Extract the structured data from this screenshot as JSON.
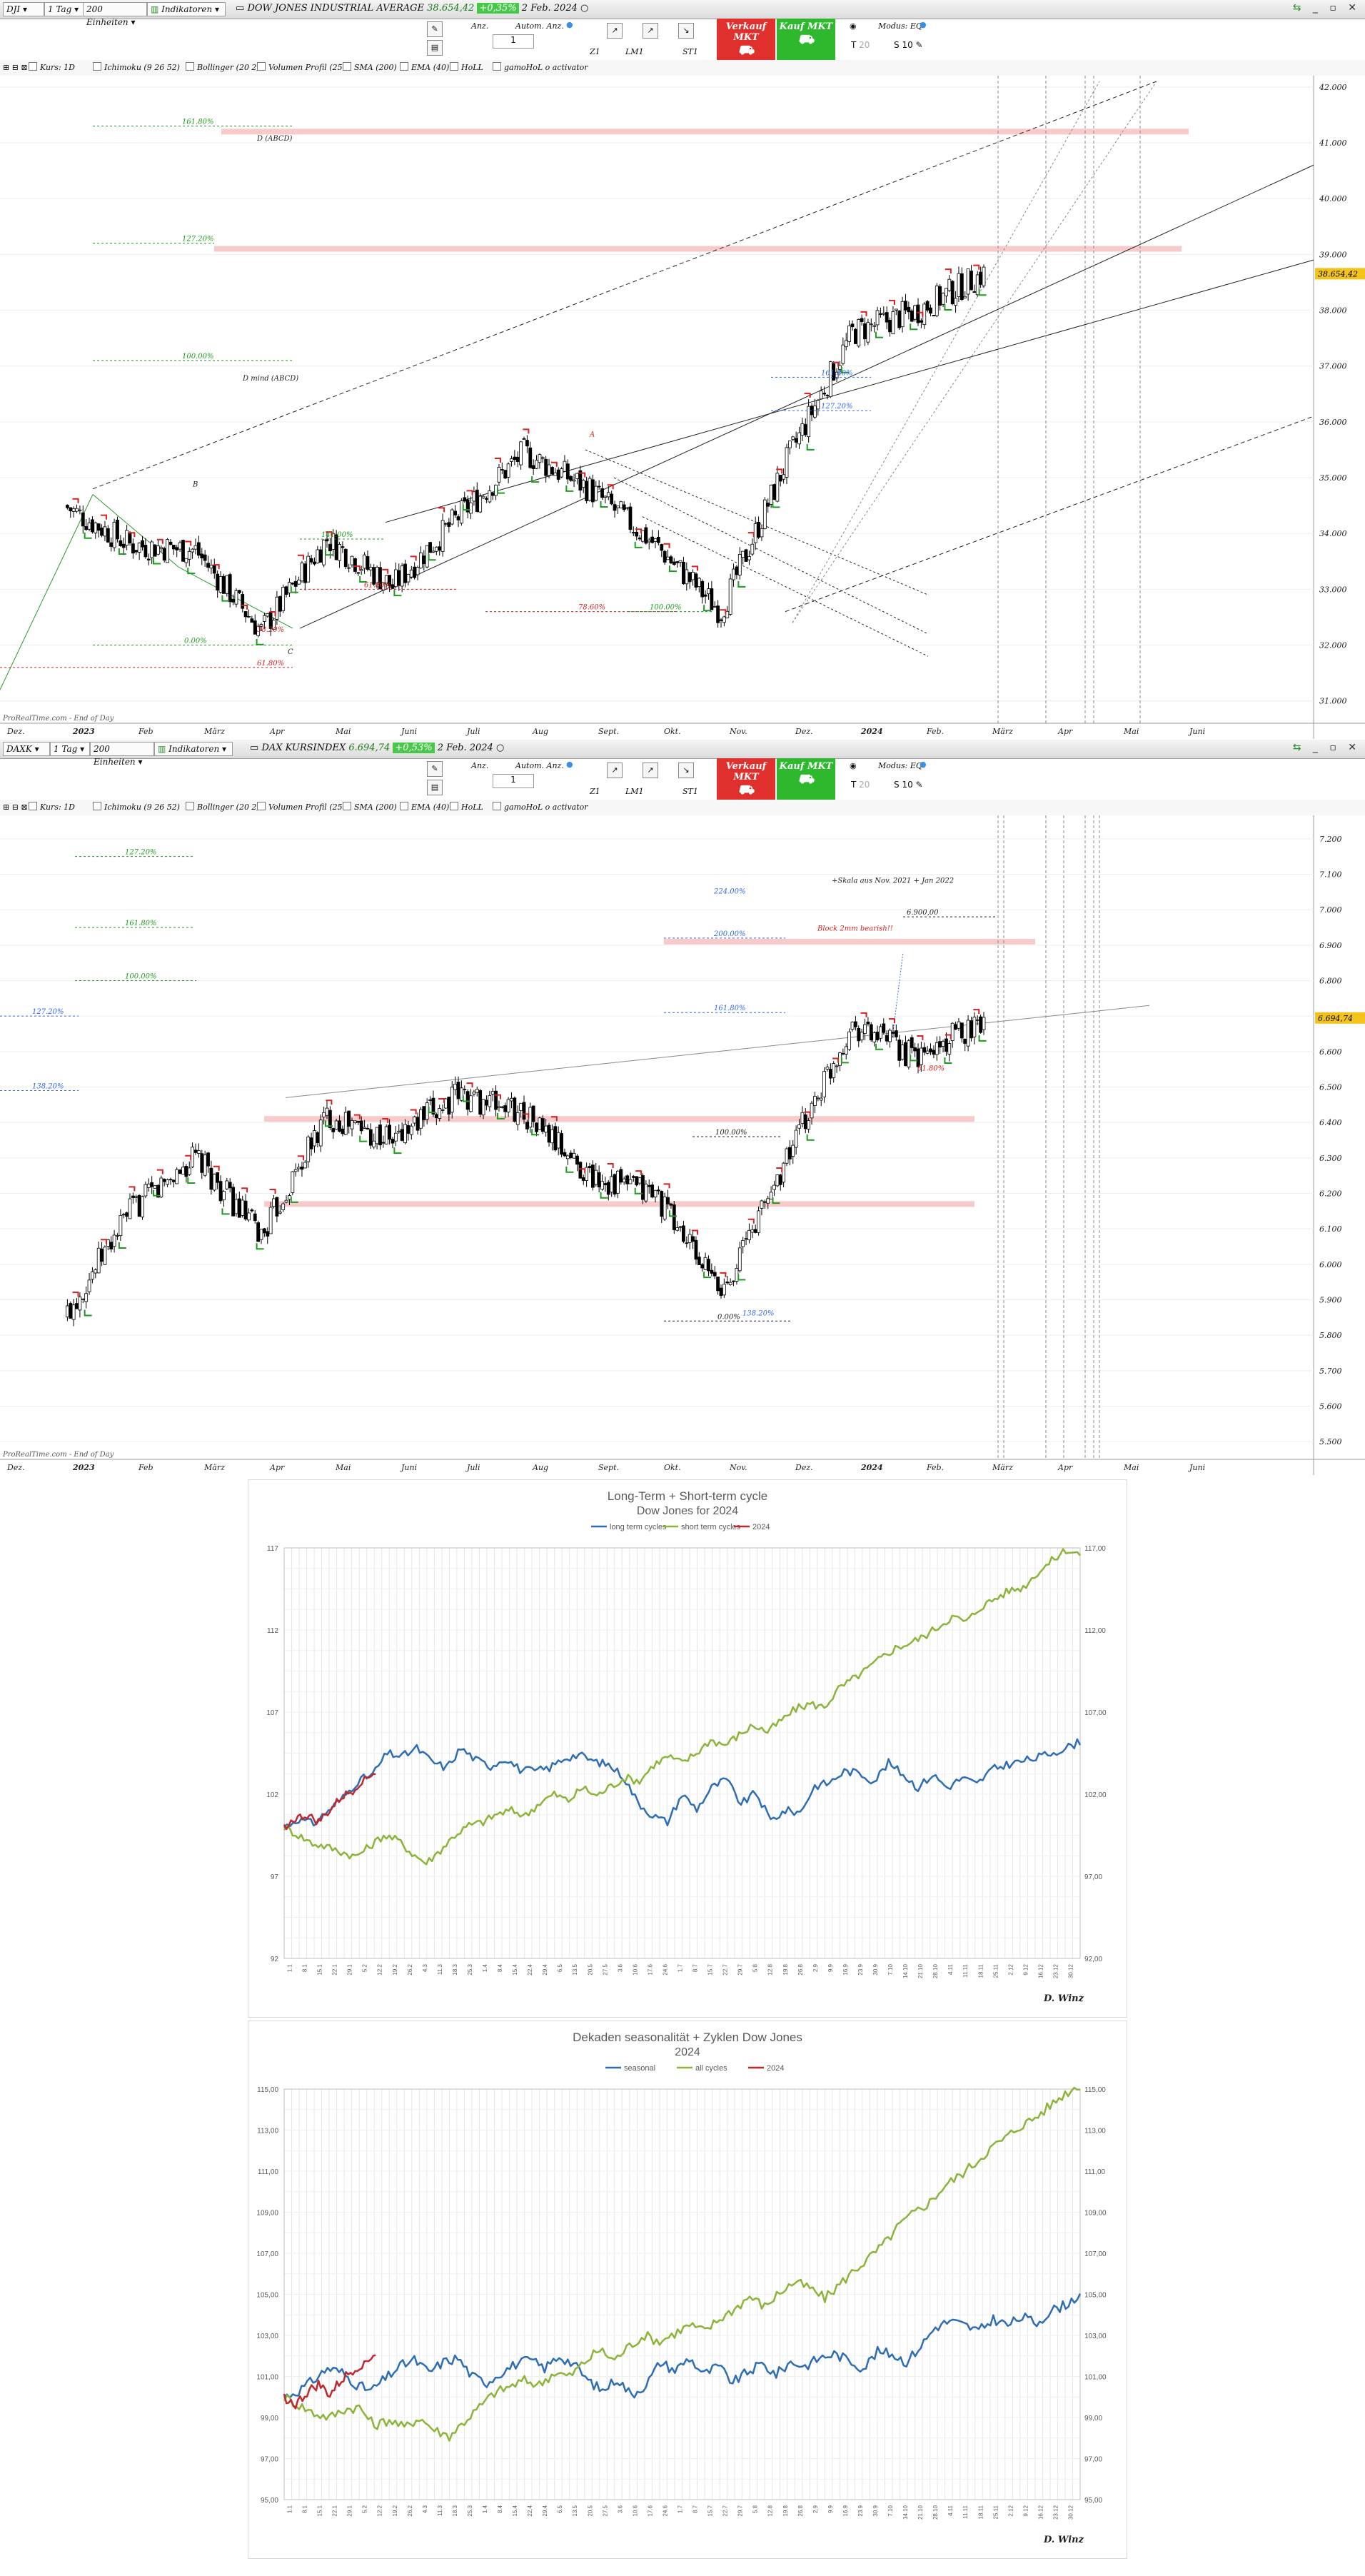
{
  "colors": {
    "up": "#ffffff",
    "down": "#000000",
    "green": "#1f9a1f",
    "red": "#d42020",
    "blue": "#3366ee",
    "zone": "#f6c4c6",
    "blueSeries": "#2e6db4",
    "greenSeries": "#8cb43a",
    "redSeries": "#c0282f"
  },
  "panel1": {
    "toolbar": {
      "symbol": "DJI",
      "interval": "1 Tag",
      "units": "200 Einheiten",
      "indicators": "Indikatoren",
      "title": "DOW JONES INDUSTRIAL AVERAGE",
      "price": "38.654,42",
      "change": "+0,35%",
      "date": "2 Feb. 2024",
      "window_icons": "_ ▫ ✕"
    },
    "tools": {
      "anz_label": "Anz.",
      "anz_value": "1",
      "auto_label": "Autom. Anz.",
      "z_label": "Z1",
      "lm_label": "LM1",
      "st_label": "ST1",
      "sell_label": "Verkauf MKT",
      "buy_label": "Kauf MKT",
      "mode_label": "Modus: EQ",
      "t_label": "T",
      "t_value": "20",
      "s_label": "S",
      "s_value": "10"
    },
    "indicators": [
      "Kurs: 1D",
      "Ichimoku (9 26 52)",
      "Bollinger (20 2)",
      "Volumen Profil (25",
      "SMA (200)",
      "EMA (40)",
      "HoLL",
      "gamoHoL o activator"
    ],
    "watermark": "ProRealTime.com - End of Day"
  },
  "panel2": {
    "toolbar": {
      "symbol": "DAXK",
      "interval": "1 Tag",
      "units": "200 Einheiten",
      "indicators": "Indikatoren",
      "title": "DAX KURSINDEX",
      "price": "6.694,74",
      "change": "+0,53%",
      "date": "2 Feb. 2024",
      "window_icons": "_ ▫ ✕"
    },
    "tools": {
      "anz_label": "Anz.",
      "anz_value": "1",
      "auto_label": "Autom. Anz.",
      "z_label": "Z1",
      "lm_label": "LM1",
      "st_label": "ST1",
      "sell_label": "Verkauf MKT",
      "buy_label": "Kauf MKT",
      "mode_label": "Modus: EQ",
      "t_label": "T",
      "t_value": "20",
      "s_label": "S",
      "s_value": "10"
    },
    "indicators": [
      "Kurs: 1D",
      "Ichimoku (9 26 52)",
      "Bollinger (20 2)",
      "Volumen Profil (25",
      "SMA (200)",
      "EMA (40)",
      "HoLL",
      "gamoHoL o activator"
    ],
    "watermark": "ProRealTime.com - End of Day"
  },
  "chart_data": [
    {
      "type": "candlestick",
      "title": "DOW JONES INDUSTRIAL AVERAGE",
      "y_ticks": [
        "31.000",
        "32.000",
        "33.000",
        "34.000",
        "35.000",
        "36.000",
        "37.000",
        "38.000",
        "39.000",
        "40.000",
        "41.000",
        "42.000"
      ],
      "ylim": [
        30600,
        42100
      ],
      "x_ticks": [
        "Dez.",
        "2023",
        "Feb",
        "März",
        "Apr",
        "Mai",
        "Juni",
        "Juli",
        "Aug",
        "Sept.",
        "Okt.",
        "Nov.",
        "Dez.",
        "2024",
        "Feb.",
        "März",
        "Apr",
        "Mai",
        "Juni"
      ],
      "last_price": "38.654,42",
      "key_points": [
        {
          "date": "2022-12",
          "close": 34500
        },
        {
          "date": "2023-01",
          "close": 33800
        },
        {
          "date": "2023-02",
          "close": 33700
        },
        {
          "date": "2023-03",
          "close": 32250
        },
        {
          "date": "2023-04",
          "close": 33900
        },
        {
          "date": "2023-05",
          "close": 33050
        },
        {
          "date": "2023-06",
          "close": 34300
        },
        {
          "date": "2023-07",
          "close": 35450
        },
        {
          "date": "2023-08",
          "close": 34800
        },
        {
          "date": "2023-09",
          "close": 33800
        },
        {
          "date": "2023-10",
          "close": 32600
        },
        {
          "date": "2023-11",
          "close": 35300
        },
        {
          "date": "2023-12",
          "close": 37600
        },
        {
          "date": "2024-01",
          "close": 38000
        },
        {
          "date": "2024-02",
          "close": 38654
        }
      ],
      "annotations": [
        "161.80%",
        "D (ABCD)",
        "127.20%",
        "100.00%",
        "D mind (ABCD)",
        "141.00%",
        "61.80%",
        "78.60%",
        "100.00%",
        "161.80%",
        "127.20%",
        "B",
        "A",
        "C",
        "38.20%",
        "0.00%",
        "61.80%"
      ]
    },
    {
      "type": "candlestick",
      "title": "DAX KURSINDEX",
      "y_ticks": [
        "5.500",
        "5.600",
        "5.700",
        "5.800",
        "5.900",
        "6.000",
        "6.100",
        "6.200",
        "6.300",
        "6.400",
        "6.500",
        "6.600",
        "6.700",
        "6.800",
        "6.900",
        "7.000",
        "7.100",
        "7.200"
      ],
      "ylim": [
        5450,
        7250
      ],
      "x_ticks": [
        "Dez.",
        "2023",
        "Feb",
        "März",
        "Apr",
        "Mai",
        "Juni",
        "Juli",
        "Aug",
        "Sept.",
        "Okt.",
        "Nov.",
        "Dez.",
        "2024",
        "Feb.",
        "März",
        "Apr",
        "Mai",
        "Juni"
      ],
      "last_price": "6.694,74",
      "key_points": [
        {
          "date": "2022-12",
          "close": 5850
        },
        {
          "date": "2023-01",
          "close": 6150
        },
        {
          "date": "2023-02",
          "close": 6300
        },
        {
          "date": "2023-03",
          "close": 6080
        },
        {
          "date": "2023-04",
          "close": 6420
        },
        {
          "date": "2023-05",
          "close": 6350
        },
        {
          "date": "2023-06",
          "close": 6480
        },
        {
          "date": "2023-07",
          "close": 6430
        },
        {
          "date": "2023-08",
          "close": 6250
        },
        {
          "date": "2023-09",
          "close": 6200
        },
        {
          "date": "2023-10",
          "close": 5920
        },
        {
          "date": "2023-11",
          "close": 6300
        },
        {
          "date": "2023-12",
          "close": 6680
        },
        {
          "date": "2024-01",
          "close": 6580
        },
        {
          "date": "2024-02",
          "close": 6694
        }
      ],
      "annotations": [
        "127.20%",
        "161.80%",
        "100.00%",
        "127.20%",
        "138.20%",
        "224.00%",
        "200.00%",
        "161.80%",
        "Block 2mm bearish!!",
        "+Skala aus Nov. 2021 + Jan 2022",
        "6.900,00",
        "100.00%",
        "61.80%",
        "0.00%",
        "138.20%"
      ]
    },
    {
      "type": "line",
      "title": "Long-Term + Short-term cycle",
      "subtitle": "Dow Jones for 2024",
      "series": [
        {
          "name": "long term cycles",
          "axis": "left",
          "values": [
            100,
            100.5,
            100.2,
            101,
            101.8,
            102.8,
            103.2,
            104.5,
            104.3,
            104.8,
            104,
            103.6,
            104.8,
            104.1,
            103.7,
            104.2,
            103.5,
            103.4,
            103.6,
            104.2,
            104.4,
            104,
            103.8,
            103.1,
            101.5,
            100.7,
            100.3,
            102,
            101.1,
            102.4,
            102.9,
            101.4,
            102.1,
            100.4,
            101,
            100.9,
            102.5,
            102.7,
            103.4,
            103.3,
            102.8,
            103.9,
            103.2,
            102.4,
            103.2,
            102.4,
            103,
            102.6,
            103.5,
            103.8,
            104,
            104.2,
            104.5,
            104.8,
            105.2
          ]
        },
        {
          "name": "short term cycles",
          "axis": "right",
          "values": [
            100,
            99.5,
            99,
            98.8,
            98.5,
            98.2,
            98.8,
            99.5,
            99.2,
            98.4,
            97.8,
            98.6,
            99.5,
            100.1,
            100.3,
            100.8,
            101,
            100.7,
            101.5,
            102,
            101.6,
            102.4,
            101.9,
            102.5,
            103,
            102.8,
            103.8,
            104.3,
            103.9,
            104.5,
            105.3,
            105,
            105.6,
            106.2,
            105.8,
            106.5,
            107.2,
            107.5,
            107.3,
            108.4,
            109,
            109.6,
            110.3,
            110.9,
            111.2,
            111.6,
            112.2,
            112.8,
            112.5,
            113.4,
            113.9,
            114.4,
            114.6,
            115.5,
            116.2,
            116.9,
            116.6
          ]
        },
        {
          "name": "2024",
          "axis": "left",
          "values": [
            100,
            100.5,
            100.7,
            100.3,
            101,
            101.8,
            102.2,
            103,
            103.3
          ]
        }
      ],
      "y_left_ticks": [
        "92",
        "97",
        "102",
        "107",
        "112",
        "117"
      ],
      "y_right_ticks": [
        "92,00",
        "97,00",
        "102,00",
        "107,00",
        "112,00",
        "117,00"
      ],
      "ylim_left": [
        92,
        117
      ],
      "ylim_right": [
        92,
        117
      ],
      "x_ticks": [
        "1.1",
        "8.1",
        "15.1",
        "22.1",
        "29.1",
        "5.2",
        "12.2",
        "19.2",
        "26.2",
        "4.3",
        "11.3",
        "18.3",
        "25.3",
        "1.4",
        "8.4",
        "15.4",
        "22.4",
        "29.4",
        "6.5",
        "13.5",
        "20.5",
        "27.5",
        "3.6",
        "10.6",
        "17.6",
        "24.6",
        "1.7",
        "8.7",
        "15.7",
        "22.7",
        "29.7",
        "5.8",
        "12.8",
        "19.8",
        "26.8",
        "2.9",
        "9.9",
        "16.9",
        "23.9",
        "30.9",
        "7.10",
        "14.10",
        "21.10",
        "28.10",
        "4.11",
        "11.11",
        "18.11",
        "25.11",
        "2.12",
        "9.12",
        "16.12",
        "23.12",
        "30.12"
      ],
      "footer": "D. Winz"
    },
    {
      "type": "line",
      "title": "Dekaden seasonalität + Zyklen Dow Jones",
      "subtitle": "2024",
      "series": [
        {
          "name": "seasonal",
          "axis": "left",
          "values": [
            100,
            100.3,
            100.8,
            101.4,
            101.2,
            100.6,
            100.3,
            100.9,
            101.5,
            101.8,
            101.2,
            101.7,
            101.9,
            101,
            100.7,
            101.2,
            101.6,
            101.8,
            101.4,
            102,
            101.6,
            100.8,
            100.3,
            100.9,
            100.1,
            100.6,
            101.7,
            101.3,
            101.9,
            101.1,
            101.5,
            100.7,
            101.2,
            101.6,
            101.1,
            101.7,
            101.5,
            101.9,
            102.1,
            101.8,
            101.4,
            102.2,
            102.1,
            101.7,
            102.5,
            103.4,
            103.7,
            103.5,
            103.2,
            103.8,
            103.5,
            103.9,
            103.6,
            104.2,
            104.5,
            105
          ]
        },
        {
          "name": "all cycles",
          "axis": "left",
          "values": [
            100,
            99.6,
            99.2,
            99,
            99.4,
            99.5,
            98.6,
            98.9,
            98.5,
            99,
            98.4,
            98.1,
            98.8,
            99.5,
            100.2,
            100.5,
            100.8,
            100.6,
            101.2,
            101,
            101.7,
            102.3,
            101.8,
            102.5,
            103,
            102.7,
            103.1,
            103.5,
            103.2,
            103.8,
            104.3,
            104.9,
            104.4,
            105.1,
            105.6,
            105.3,
            104.8,
            105.5,
            106.2,
            106.8,
            107.5,
            108.4,
            109,
            109.5,
            110.3,
            110.8,
            111.4,
            112.1,
            112.6,
            113.2,
            113.6,
            114.2,
            114.8,
            115.2
          ]
        },
        {
          "name": "2024",
          "axis": "left",
          "values": [
            100,
            99.6,
            100.2,
            100.6,
            100.1,
            100.8,
            101.3,
            101.7,
            102.1
          ]
        }
      ],
      "y_left_ticks": [
        "95,00",
        "97,00",
        "99,00",
        "101,00",
        "103,00",
        "105,00",
        "107,00",
        "109,00",
        "111,00",
        "113,00",
        "115,00"
      ],
      "y_right_ticks": [
        "95,00",
        "97,00",
        "99,00",
        "101,00",
        "103,00",
        "105,00",
        "107,00",
        "109,00",
        "111,00",
        "113,00",
        "115,00"
      ],
      "ylim_left": [
        95,
        115
      ],
      "x_ticks": [
        "1.1",
        "8.1",
        "15.1",
        "22.1",
        "29.1",
        "5.2",
        "12.2",
        "19.2",
        "26.2",
        "4.3",
        "11.3",
        "18.3",
        "25.3",
        "1.4",
        "8.4",
        "15.4",
        "22.4",
        "29.4",
        "6.5",
        "13.5",
        "20.5",
        "27.5",
        "3.6",
        "10.6",
        "17.6",
        "24.6",
        "1.7",
        "8.7",
        "15.7",
        "22.7",
        "29.7",
        "5.8",
        "12.8",
        "19.8",
        "26.8",
        "2.9",
        "9.9",
        "16.9",
        "23.9",
        "30.9",
        "7.10",
        "14.10",
        "21.10",
        "28.10",
        "4.11",
        "11.11",
        "18.11",
        "25.11",
        "2.12",
        "9.12",
        "16.12",
        "23.12",
        "30.12"
      ],
      "footer": "D. Winz"
    }
  ]
}
